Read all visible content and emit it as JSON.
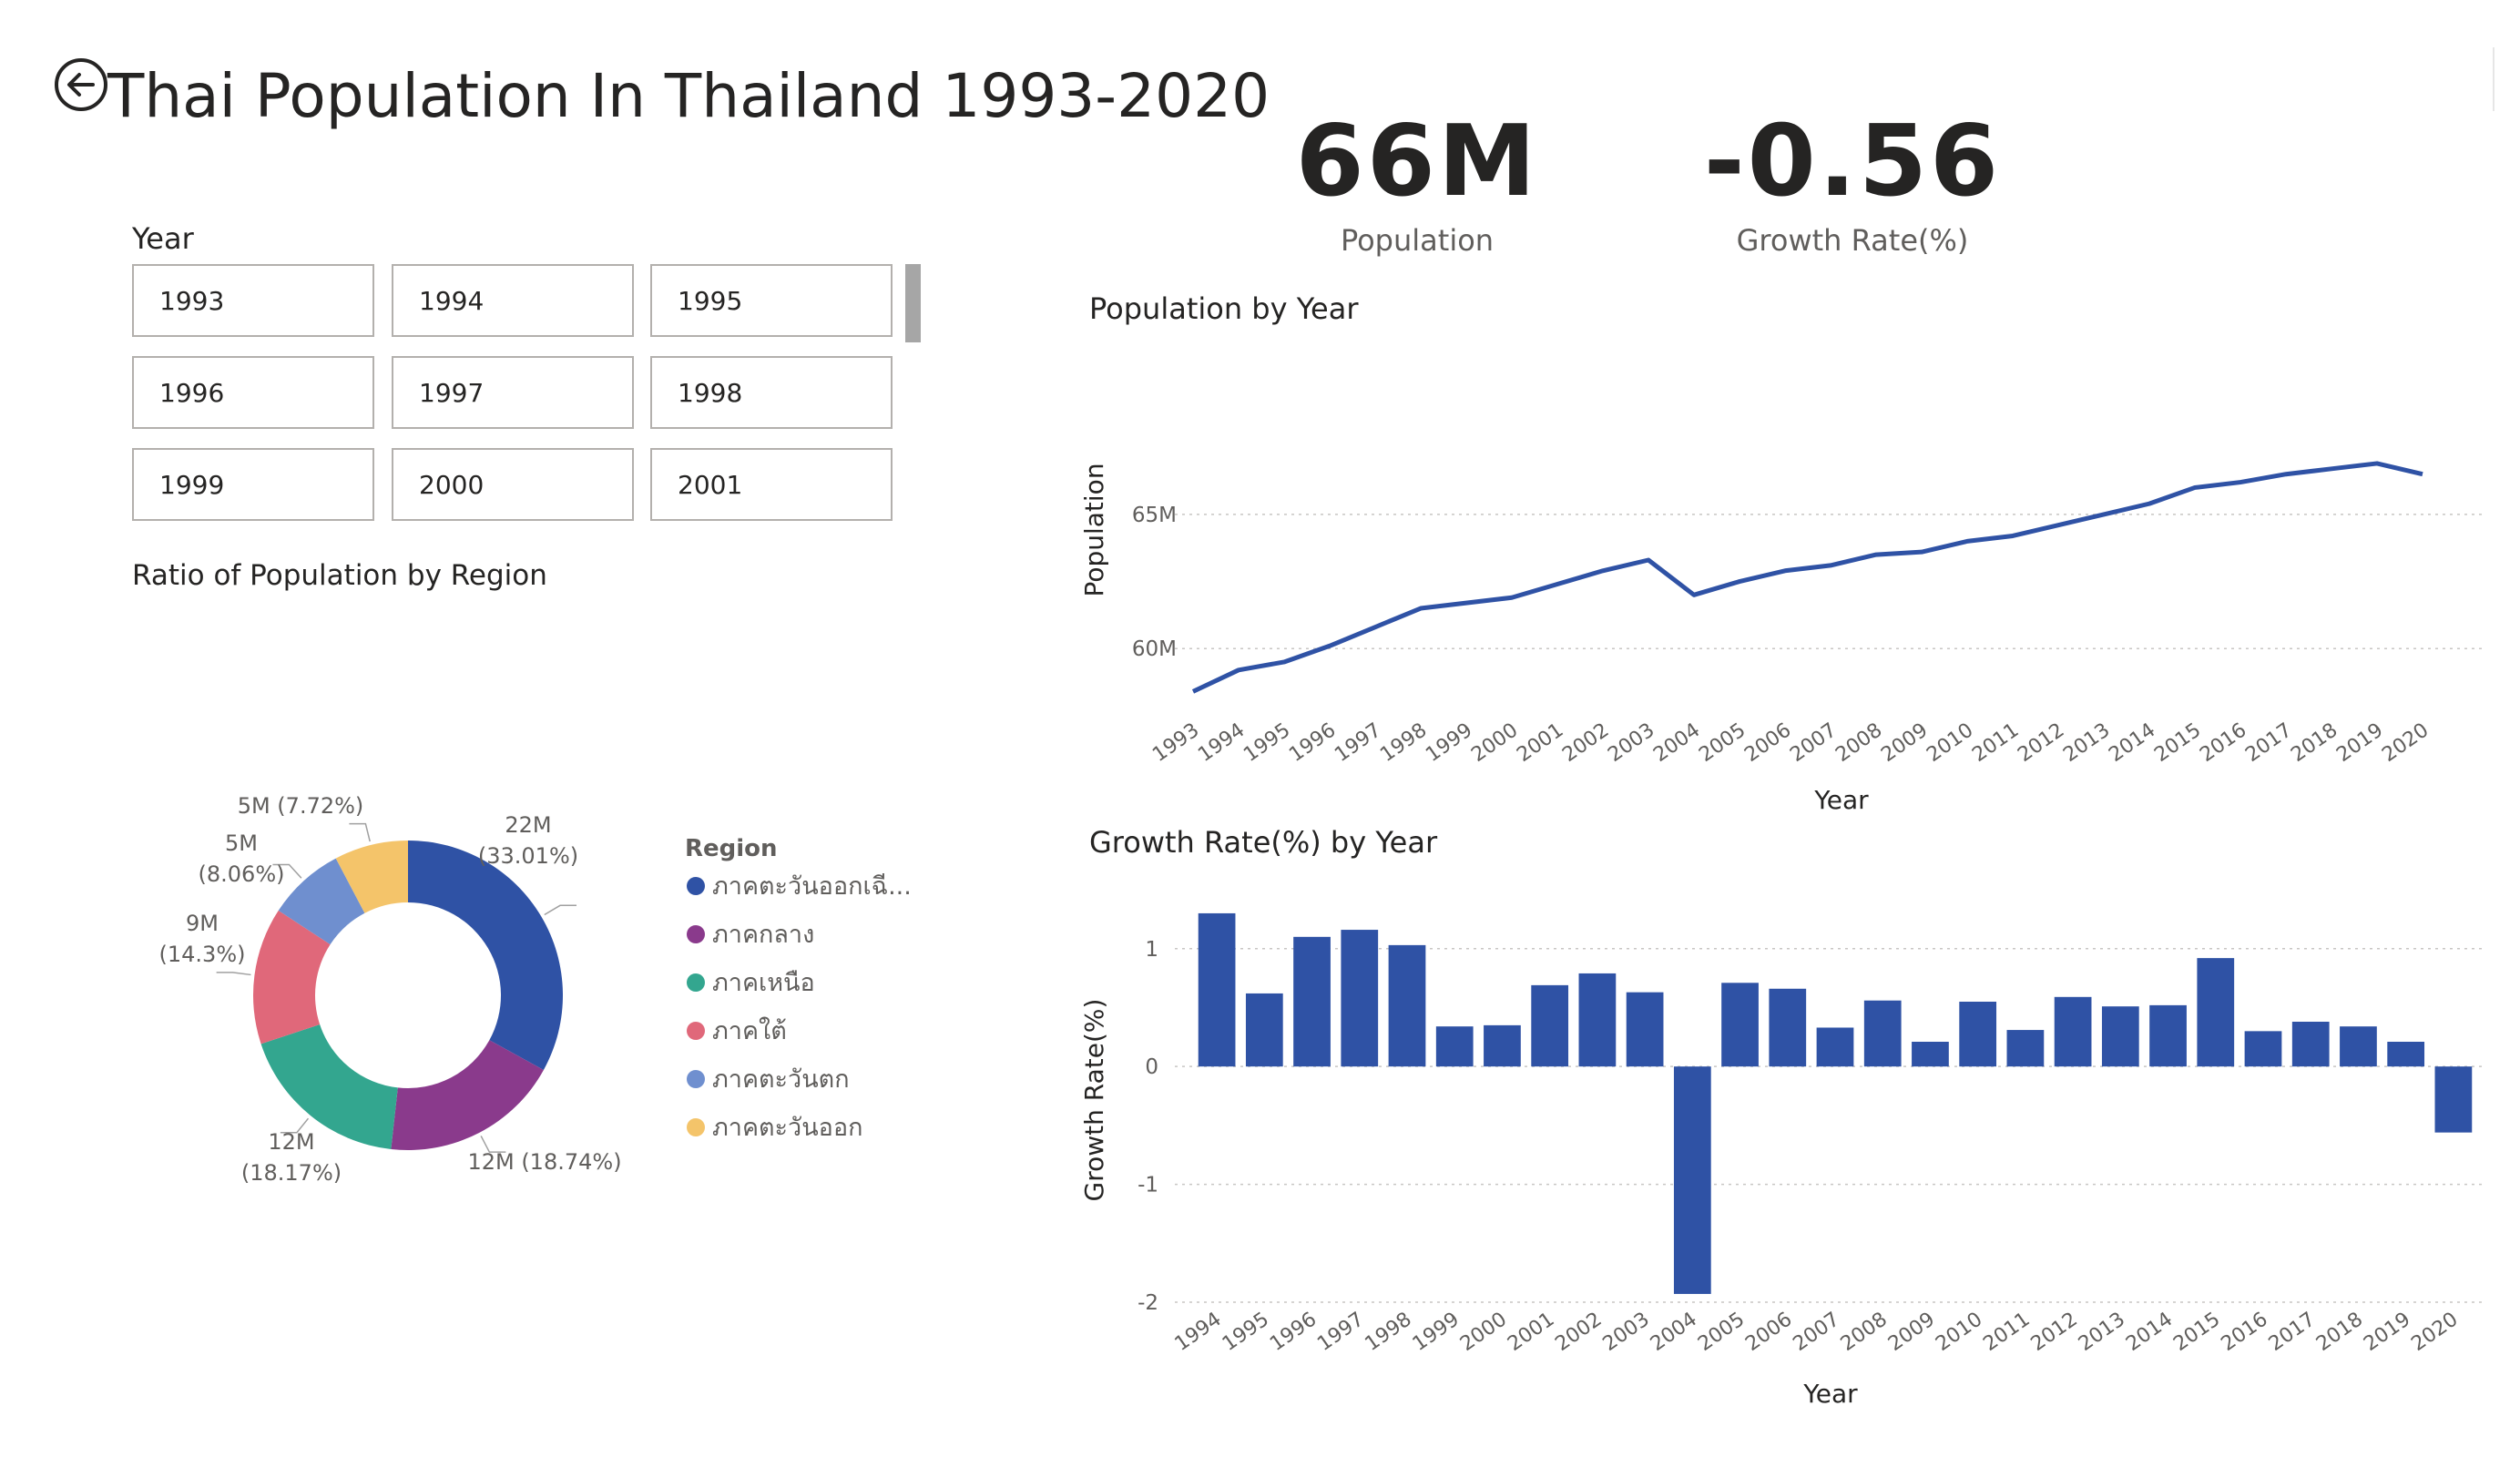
{
  "title": "Thai Population In Thailand 1993-2020",
  "slicer": {
    "label": "Year",
    "items": [
      "1993",
      "1994",
      "1995",
      "1996",
      "1997",
      "1998",
      "1999",
      "2000",
      "2001"
    ]
  },
  "kpis": [
    {
      "value": "66M",
      "label": "Population"
    },
    {
      "value": "-0.56",
      "label": "Growth Rate(%)"
    }
  ],
  "colors": {
    "accent": "#2f52a5",
    "region_colors": [
      "#2f52a5",
      "#8a3a8c",
      "#33a68f",
      "#e0687a",
      "#6f8fcf",
      "#f4c46a"
    ]
  },
  "icons": {
    "back": "back-arrow-icon"
  },
  "chart_data": [
    {
      "type": "pie",
      "title": "Ratio of Population by Region",
      "legend_title": "Region",
      "labels": [
        "ภาคตะวันออกเฉี...",
        "ภาคกลาง",
        "ภาคเหนือ",
        "ภาคใต้",
        "ภาคตะวันตก",
        "ภาคตะวันออก"
      ],
      "values": [
        33.01,
        18.74,
        18.17,
        14.3,
        8.06,
        7.72
      ],
      "data_labels": [
        [
          "22M",
          "(33.01%)"
        ],
        [
          "12M (18.74%)"
        ],
        [
          "12M",
          "(18.17%)"
        ],
        [
          "9M",
          "(14.3%)"
        ],
        [
          "5M",
          "(8.06%)"
        ],
        [
          "5M (7.72%)"
        ]
      ],
      "hole": "donut",
      "legend_position": "right"
    },
    {
      "type": "line",
      "title": "Population by Year",
      "xlabel": "Year",
      "ylabel": "Population",
      "x": [
        "1993",
        "1994",
        "1995",
        "1996",
        "1997",
        "1998",
        "1999",
        "2000",
        "2001",
        "2002",
        "2003",
        "2004",
        "2005",
        "2006",
        "2007",
        "2008",
        "2009",
        "2010",
        "2011",
        "2012",
        "2013",
        "2014",
        "2015",
        "2016",
        "2017",
        "2018",
        "2019",
        "2020"
      ],
      "values": [
        58.4,
        59.2,
        59.5,
        60.1,
        60.8,
        61.5,
        61.7,
        61.9,
        62.4,
        62.9,
        63.3,
        62.0,
        62.5,
        62.9,
        63.1,
        63.5,
        63.6,
        64.0,
        64.2,
        64.6,
        65.0,
        65.4,
        66.0,
        66.2,
        66.5,
        66.7,
        66.9,
        66.5
      ],
      "y_ticks": [
        {
          "value": 60,
          "label": "60M"
        },
        {
          "value": 65,
          "label": "65M"
        }
      ],
      "ylim": [
        57.7,
        68.9
      ],
      "grid": true
    },
    {
      "type": "bar",
      "title": "Growth Rate(%) by Year",
      "xlabel": "Year",
      "ylabel": "Growth Rate(%)",
      "categories": [
        "1994",
        "1995",
        "1996",
        "1997",
        "1998",
        "1999",
        "2000",
        "2001",
        "2002",
        "2003",
        "2004",
        "2005",
        "2006",
        "2007",
        "2008",
        "2009",
        "2010",
        "2011",
        "2012",
        "2013",
        "2014",
        "2015",
        "2016",
        "2017",
        "2018",
        "2019",
        "2020"
      ],
      "values": [
        1.3,
        0.62,
        1.1,
        1.16,
        1.03,
        0.34,
        0.35,
        0.69,
        0.79,
        0.63,
        -1.93,
        0.71,
        0.66,
        0.33,
        0.56,
        0.21,
        0.55,
        0.31,
        0.59,
        0.51,
        0.52,
        0.92,
        0.3,
        0.38,
        0.34,
        0.21,
        -0.56
      ],
      "y_ticks": [
        -2,
        -1,
        0,
        1
      ],
      "ylim": [
        -2,
        1.4
      ],
      "grid": true
    }
  ]
}
